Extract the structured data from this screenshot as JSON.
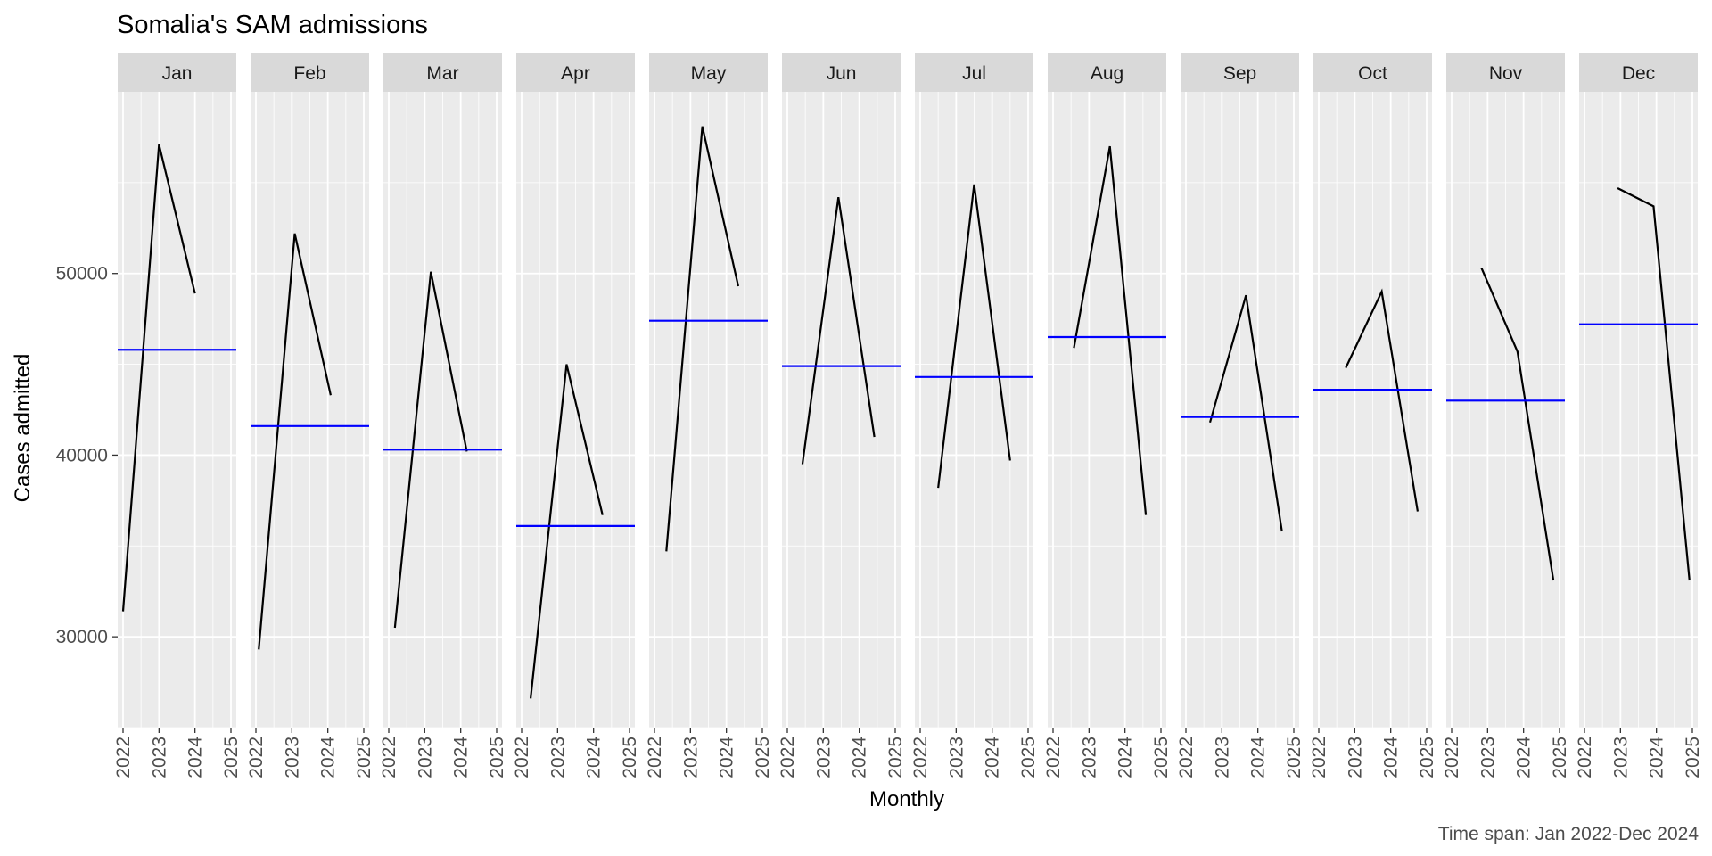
{
  "chart_data": {
    "type": "line",
    "title": "Somalia's SAM admissions",
    "xlabel": "Monthly",
    "ylabel": "Cases admitted",
    "caption": "Time span: Jan 2022-Dec 2024",
    "xlim": [
      2022,
      2025
    ],
    "ylim": [
      25000,
      60000
    ],
    "x_ticks": [
      "2022",
      "2023",
      "2024",
      "2025"
    ],
    "y_ticks": [
      "30000",
      "40000",
      "50000"
    ],
    "grid": true,
    "facet_by": "month",
    "colors": {
      "panel": "#ebebeb",
      "strip": "#d9d9d9",
      "grid": "#ffffff",
      "series": "#000000",
      "mean_line": "#0000ff"
    },
    "series_note": "Each panel: admissions for that calendar month in 2022, 2023, 2024; blue line = mean of the three years",
    "panels": [
      {
        "month": "Jan",
        "x": [
          2022.0,
          2023.0,
          2024.0
        ],
        "values": [
          31400,
          57100,
          48900
        ],
        "mean": 45800
      },
      {
        "month": "Feb",
        "x": [
          2022.08,
          2023.08,
          2024.08
        ],
        "values": [
          29300,
          52200,
          43300
        ],
        "mean": 41600
      },
      {
        "month": "Mar",
        "x": [
          2022.17,
          2023.17,
          2024.17
        ],
        "values": [
          30500,
          50100,
          40200
        ],
        "mean": 40300
      },
      {
        "month": "Apr",
        "x": [
          2022.25,
          2023.25,
          2024.25
        ],
        "values": [
          26600,
          45000,
          36700
        ],
        "mean": 36100
      },
      {
        "month": "May",
        "x": [
          2022.33,
          2023.33,
          2024.33
        ],
        "values": [
          34700,
          58100,
          49300
        ],
        "mean": 47400
      },
      {
        "month": "Jun",
        "x": [
          2022.42,
          2023.42,
          2024.42
        ],
        "values": [
          39500,
          54200,
          41000
        ],
        "mean": 44900
      },
      {
        "month": "Jul",
        "x": [
          2022.5,
          2023.5,
          2024.5
        ],
        "values": [
          38200,
          54900,
          39700
        ],
        "mean": 44300
      },
      {
        "month": "Aug",
        "x": [
          2022.58,
          2023.58,
          2024.58
        ],
        "values": [
          45900,
          57000,
          36700
        ],
        "mean": 46500
      },
      {
        "month": "Sep",
        "x": [
          2022.67,
          2023.67,
          2024.67
        ],
        "values": [
          41800,
          48800,
          35800
        ],
        "mean": 42100
      },
      {
        "month": "Oct",
        "x": [
          2022.75,
          2023.75,
          2024.75
        ],
        "values": [
          44800,
          49000,
          36900
        ],
        "mean": 43600
      },
      {
        "month": "Nov",
        "x": [
          2022.83,
          2023.83,
          2024.83
        ],
        "values": [
          50300,
          45700,
          33100
        ],
        "mean": 43000
      },
      {
        "month": "Dec",
        "x": [
          2022.92,
          2023.92,
          2024.92
        ],
        "values": [
          54700,
          53700,
          33100
        ],
        "mean": 47200
      }
    ]
  }
}
